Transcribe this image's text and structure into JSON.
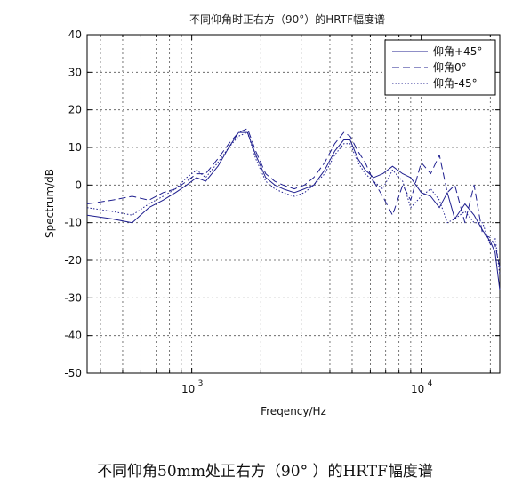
{
  "chart_data": {
    "type": "line",
    "title": "不同仰角时正右方（90°）的HRTF幅度谱",
    "xlabel": "Freqency/Hz",
    "ylabel": "Spectrum/dB",
    "xscale": "log",
    "xlim": [
      350,
      22000
    ],
    "ylim": [
      -50,
      40
    ],
    "yticks": [
      40,
      30,
      20,
      10,
      0,
      -10,
      -20,
      -30,
      -40,
      -50
    ],
    "xticks": [
      {
        "value": 1000,
        "base": "10",
        "exp": "3"
      },
      {
        "value": 10000,
        "base": "10",
        "exp": "4"
      }
    ],
    "grid": true,
    "legend_position": "top-right",
    "colors": {
      "series": "#1f1f8f"
    },
    "series": [
      {
        "name": "仰角+45°",
        "style": "solid",
        "x": [
          350,
          450,
          550,
          650,
          750,
          850,
          950,
          1050,
          1150,
          1300,
          1450,
          1600,
          1750,
          1900,
          2100,
          2300,
          2500,
          2800,
          3100,
          3400,
          3800,
          4200,
          4600,
          4900,
          5300,
          5700,
          6200,
          6800,
          7500,
          8300,
          9000,
          10000,
          11000,
          12000,
          13000,
          14000,
          15500,
          17000,
          18500,
          20000,
          21000,
          22000
        ],
        "y": [
          -8,
          -9,
          -10,
          -6,
          -4,
          -2,
          0,
          2,
          1,
          5,
          10,
          14,
          14,
          8,
          2,
          0,
          -1,
          -2,
          -1,
          0,
          4,
          9,
          12,
          12,
          7,
          4,
          2,
          3,
          5,
          3,
          2,
          -2,
          -3,
          -6,
          -2,
          -9,
          -5,
          -8,
          -12,
          -15,
          -18,
          -28
        ]
      },
      {
        "name": "仰角0°",
        "style": "dashed",
        "x": [
          350,
          450,
          550,
          650,
          750,
          850,
          950,
          1050,
          1150,
          1300,
          1450,
          1600,
          1750,
          1900,
          2100,
          2300,
          2500,
          2800,
          3100,
          3400,
          3800,
          4200,
          4600,
          4900,
          5300,
          5700,
          6200,
          6800,
          7500,
          8300,
          9000,
          10000,
          11000,
          12000,
          13000,
          14000,
          15500,
          17000,
          18500,
          20000,
          21000,
          22000
        ],
        "y": [
          -5,
          -4,
          -3,
          -4,
          -2,
          -1,
          1,
          3,
          3,
          7,
          11,
          14,
          15,
          9,
          3,
          1,
          0,
          -1,
          0,
          2,
          6,
          11,
          14,
          13,
          9,
          6,
          1,
          -3,
          -8,
          0,
          -4,
          6,
          3,
          8,
          -2,
          0,
          -10,
          0,
          -13,
          -14,
          -16,
          -22
        ]
      },
      {
        "name": "仰角-45°",
        "style": "dotted",
        "x": [
          350,
          450,
          550,
          650,
          750,
          850,
          950,
          1050,
          1150,
          1300,
          1450,
          1600,
          1750,
          1900,
          2100,
          2300,
          2500,
          2800,
          3100,
          3400,
          3800,
          4200,
          4600,
          4900,
          5300,
          5700,
          6200,
          6800,
          7500,
          8300,
          9000,
          10000,
          11000,
          12000,
          13000,
          14000,
          15500,
          17000,
          18500,
          20000,
          21000,
          22000
        ],
        "y": [
          -6,
          -7,
          -8,
          -5,
          -3,
          -1,
          2,
          4,
          2,
          6,
          10,
          13,
          14,
          7,
          1,
          -1,
          -2,
          -3,
          -2,
          0,
          3,
          8,
          11,
          11,
          6,
          3,
          1,
          -1,
          4,
          1,
          -6,
          -3,
          -1,
          -4,
          -10,
          -9,
          -7,
          -10,
          -10,
          -16,
          -14,
          -24
        ]
      }
    ]
  },
  "caption": "不同仰角50mm处正右方（90°   ）的HRTF幅度谱"
}
